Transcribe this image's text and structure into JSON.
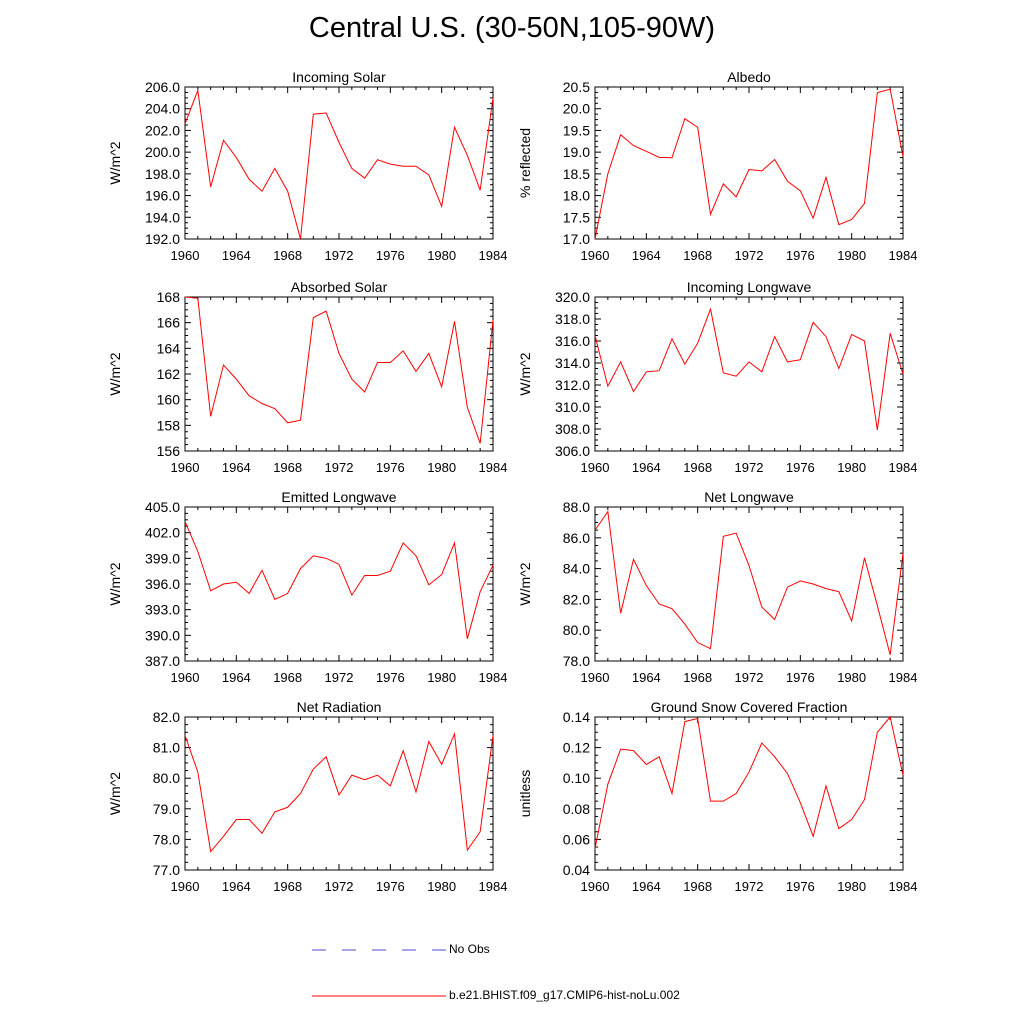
{
  "figure": {
    "title": "Central U.S. (30-50N,105-90W)"
  },
  "colors": {
    "model_line": "#ff0000",
    "obs_line": "#4b4bd2",
    "axis": "#000000"
  },
  "legend": {
    "entries": [
      {
        "label": "No Obs",
        "style": "dashed",
        "color": "#4b4bd2"
      },
      {
        "label": "b.e21.BHIST.f09_g17.CMIP6-hist-noLu.002",
        "style": "solid",
        "color": "#ff0000"
      }
    ]
  },
  "chart_data": [
    {
      "type": "line",
      "title": "Incoming Solar",
      "xlabel": "",
      "ylabel": "W/m^2",
      "xlim": [
        1960,
        1984
      ],
      "ylim": [
        192,
        206
      ],
      "xticks": [
        1960,
        1964,
        1968,
        1972,
        1976,
        1980,
        1984
      ],
      "yticks": [
        192,
        194,
        196,
        198,
        200,
        202,
        204,
        206
      ],
      "yfmt": 1,
      "series": [
        {
          "name": "b.e21.BHIST.f09_g17.CMIP6-hist-noLu.002",
          "x": [
            1960,
            1961,
            1962,
            1963,
            1964,
            1965,
            1966,
            1967,
            1968,
            1969,
            1970,
            1971,
            1972,
            1973,
            1974,
            1975,
            1976,
            1977,
            1978,
            1979,
            1980,
            1981,
            1982,
            1983,
            1984
          ],
          "values": [
            202.6,
            205.7,
            196.8,
            201.1,
            199.5,
            197.5,
            196.4,
            198.5,
            196.4,
            192.0,
            203.5,
            203.6,
            200.9,
            198.5,
            197.6,
            199.3,
            198.9,
            198.7,
            198.7,
            197.9,
            195.0,
            202.3,
            199.7,
            196.5,
            205.0
          ]
        }
      ]
    },
    {
      "type": "line",
      "title": "Albedo",
      "xlabel": "",
      "ylabel": "% reflected",
      "xlim": [
        1960,
        1984
      ],
      "ylim": [
        17.0,
        20.5
      ],
      "xticks": [
        1960,
        1964,
        1968,
        1972,
        1976,
        1980,
        1984
      ],
      "yticks": [
        17.0,
        17.5,
        18.0,
        18.5,
        19.0,
        19.5,
        20.0,
        20.5
      ],
      "yfmt": 1,
      "series": [
        {
          "name": "b.e21.BHIST.f09_g17.CMIP6-hist-noLu.002",
          "x": [
            1960,
            1961,
            1962,
            1963,
            1964,
            1965,
            1966,
            1967,
            1968,
            1969,
            1970,
            1971,
            1972,
            1973,
            1974,
            1975,
            1976,
            1977,
            1978,
            1979,
            1980,
            1981,
            1982,
            1983,
            1984
          ],
          "values": [
            17.0,
            18.5,
            19.4,
            19.15,
            19.02,
            18.88,
            18.87,
            19.77,
            19.57,
            17.57,
            18.27,
            17.97,
            18.6,
            18.57,
            18.83,
            18.33,
            18.11,
            17.48,
            18.42,
            17.33,
            17.45,
            17.82,
            20.37,
            20.45,
            18.9
          ]
        }
      ]
    },
    {
      "type": "line",
      "title": "Absorbed Solar",
      "xlabel": "",
      "ylabel": "W/m^2",
      "xlim": [
        1960,
        1984
      ],
      "ylim": [
        156,
        168
      ],
      "xticks": [
        1960,
        1964,
        1968,
        1972,
        1976,
        1980,
        1984
      ],
      "yticks": [
        156,
        158,
        160,
        162,
        164,
        166,
        168
      ],
      "yfmt": 0,
      "series": [
        {
          "name": "b.e21.BHIST.f09_g17.CMIP6-hist-noLu.002",
          "x": [
            1960,
            1961,
            1962,
            1963,
            1964,
            1965,
            1966,
            1967,
            1968,
            1969,
            1970,
            1971,
            1972,
            1973,
            1974,
            1975,
            1976,
            1977,
            1978,
            1979,
            1980,
            1981,
            1982,
            1983,
            1984
          ],
          "values": [
            168.0,
            167.9,
            158.7,
            162.7,
            161.6,
            160.3,
            159.7,
            159.3,
            158.2,
            158.4,
            166.4,
            166.9,
            163.6,
            161.6,
            160.6,
            162.9,
            162.9,
            163.8,
            162.2,
            163.6,
            161.0,
            166.1,
            159.4,
            156.6,
            166.2
          ]
        }
      ]
    },
    {
      "type": "line",
      "title": "Incoming Longwave",
      "xlabel": "",
      "ylabel": "W/m^2",
      "xlim": [
        1960,
        1984
      ],
      "ylim": [
        306,
        320
      ],
      "xticks": [
        1960,
        1964,
        1968,
        1972,
        1976,
        1980,
        1984
      ],
      "yticks": [
        306,
        308,
        310,
        312,
        314,
        316,
        318,
        320
      ],
      "yfmt": 1,
      "series": [
        {
          "name": "b.e21.BHIST.f09_g17.CMIP6-hist-noLu.002",
          "x": [
            1960,
            1961,
            1962,
            1963,
            1964,
            1965,
            1966,
            1967,
            1968,
            1969,
            1970,
            1971,
            1972,
            1973,
            1974,
            1975,
            1976,
            1977,
            1978,
            1979,
            1980,
            1981,
            1982,
            1983,
            1984
          ],
          "values": [
            316.5,
            311.9,
            314.1,
            311.4,
            313.2,
            313.3,
            316.2,
            313.9,
            315.8,
            318.9,
            313.1,
            312.8,
            314.1,
            313.2,
            316.4,
            314.1,
            314.3,
            317.7,
            316.4,
            313.5,
            316.6,
            316.0,
            307.9,
            316.7,
            313.0
          ]
        }
      ]
    },
    {
      "type": "line",
      "title": "Emitted Longwave",
      "xlabel": "",
      "ylabel": "W/m^2",
      "xlim": [
        1960,
        1984
      ],
      "ylim": [
        387,
        405
      ],
      "xticks": [
        1960,
        1964,
        1968,
        1972,
        1976,
        1980,
        1984
      ],
      "yticks": [
        387,
        390,
        393,
        396,
        399,
        402,
        405
      ],
      "yfmt": 1,
      "series": [
        {
          "name": "b.e21.BHIST.f09_g17.CMIP6-hist-noLu.002",
          "x": [
            1960,
            1961,
            1962,
            1963,
            1964,
            1965,
            1966,
            1967,
            1968,
            1969,
            1970,
            1971,
            1972,
            1973,
            1974,
            1975,
            1976,
            1977,
            1978,
            1979,
            1980,
            1981,
            1982,
            1983,
            1984
          ],
          "values": [
            403.3,
            399.8,
            395.2,
            396.0,
            396.2,
            394.9,
            397.6,
            394.2,
            394.9,
            397.8,
            399.3,
            399.0,
            398.3,
            394.7,
            397.0,
            397.0,
            397.5,
            400.8,
            399.3,
            395.9,
            397.1,
            400.8,
            389.6,
            395.1,
            398.2
          ]
        }
      ]
    },
    {
      "type": "line",
      "title": "Net Longwave",
      "xlabel": "",
      "ylabel": "W/m^2",
      "xlim": [
        1960,
        1984
      ],
      "ylim": [
        78,
        88
      ],
      "xticks": [
        1960,
        1964,
        1968,
        1972,
        1976,
        1980,
        1984
      ],
      "yticks": [
        78,
        80,
        82,
        84,
        86,
        88
      ],
      "yfmt": 1,
      "series": [
        {
          "name": "b.e21.BHIST.f09_g17.CMIP6-hist-noLu.002",
          "x": [
            1960,
            1961,
            1962,
            1963,
            1964,
            1965,
            1966,
            1967,
            1968,
            1969,
            1970,
            1971,
            1972,
            1973,
            1974,
            1975,
            1976,
            1977,
            1978,
            1979,
            1980,
            1981,
            1982,
            1983,
            1984
          ],
          "values": [
            86.5,
            87.7,
            81.1,
            84.6,
            82.9,
            81.7,
            81.4,
            80.4,
            79.2,
            78.8,
            86.1,
            86.3,
            84.2,
            81.5,
            80.7,
            82.8,
            83.2,
            83.0,
            82.7,
            82.5,
            80.6,
            84.7,
            81.6,
            78.4,
            85.0
          ]
        }
      ]
    },
    {
      "type": "line",
      "title": "Net Radiation",
      "xlabel": "",
      "ylabel": "W/m^2",
      "xlim": [
        1960,
        1984
      ],
      "ylim": [
        77,
        82
      ],
      "xticks": [
        1960,
        1964,
        1968,
        1972,
        1976,
        1980,
        1984
      ],
      "yticks": [
        77,
        78,
        79,
        80,
        81,
        82
      ],
      "yfmt": 1,
      "series": [
        {
          "name": "b.e21.BHIST.f09_g17.CMIP6-hist-noLu.002",
          "x": [
            1960,
            1961,
            1962,
            1963,
            1964,
            1965,
            1966,
            1967,
            1968,
            1969,
            1970,
            1971,
            1972,
            1973,
            1974,
            1975,
            1976,
            1977,
            1978,
            1979,
            1980,
            1981,
            1982,
            1983,
            1984
          ],
          "values": [
            81.4,
            80.2,
            77.6,
            78.1,
            78.65,
            78.65,
            78.2,
            78.9,
            79.05,
            79.5,
            80.3,
            80.7,
            79.45,
            80.1,
            79.95,
            80.1,
            79.75,
            80.9,
            79.55,
            81.2,
            80.45,
            81.45,
            77.65,
            78.25,
            81.4
          ]
        }
      ]
    },
    {
      "type": "line",
      "title": "Ground Snow Covered Fraction",
      "xlabel": "",
      "ylabel": "unitless",
      "xlim": [
        1960,
        1984
      ],
      "ylim": [
        0.04,
        0.14
      ],
      "xticks": [
        1960,
        1964,
        1968,
        1972,
        1976,
        1980,
        1984
      ],
      "yticks": [
        0.04,
        0.06,
        0.08,
        0.1,
        0.12,
        0.14
      ],
      "yfmt": 2,
      "series": [
        {
          "name": "b.e21.BHIST.f09_g17.CMIP6-hist-noLu.002",
          "x": [
            1960,
            1961,
            1962,
            1963,
            1964,
            1965,
            1966,
            1967,
            1968,
            1969,
            1970,
            1971,
            1972,
            1973,
            1974,
            1975,
            1976,
            1977,
            1978,
            1979,
            1980,
            1981,
            1982,
            1983,
            1984
          ],
          "values": [
            0.054,
            0.096,
            0.119,
            0.118,
            0.109,
            0.114,
            0.09,
            0.137,
            0.139,
            0.085,
            0.085,
            0.09,
            0.104,
            0.123,
            0.114,
            0.103,
            0.084,
            0.062,
            0.095,
            0.067,
            0.073,
            0.086,
            0.13,
            0.14,
            0.102
          ]
        }
      ]
    }
  ]
}
